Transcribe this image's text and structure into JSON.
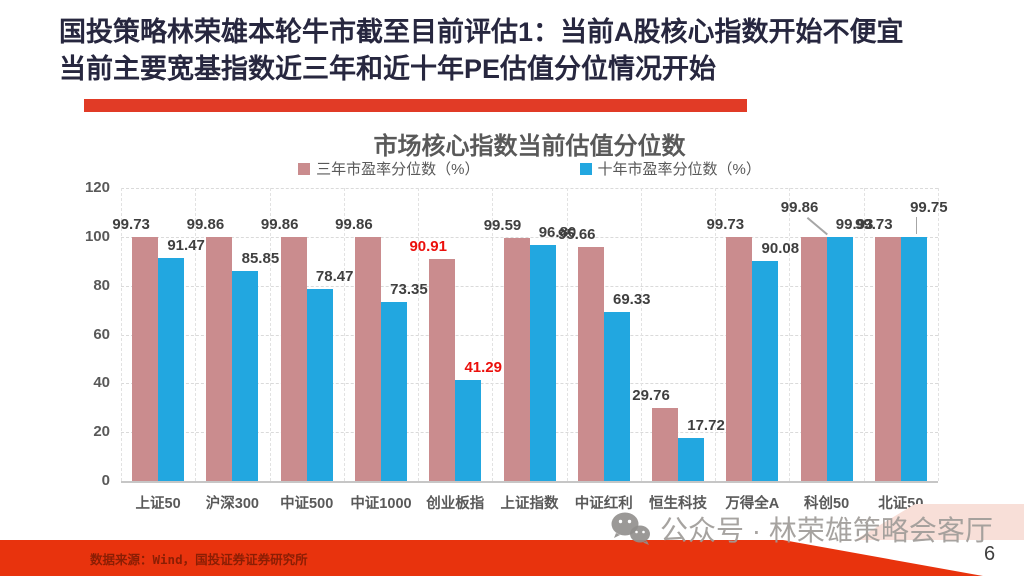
{
  "slide": {
    "title_line1": "国投策略林荣雄本轮牛市截至目前评估1：当前A股核心指数开始不便宜",
    "title_line2": "当前主要宽基指数近三年和近十年PE估值分位情况开始",
    "title_color": "#27273F",
    "underline_color": "#E13B26",
    "footer_source": "数据来源：Wind，国投证券证券研究所",
    "footer_band_color": "#E8330D",
    "watermark_text": "公众号 · 林荣雄策略会客厅",
    "watermark_icon": "wechat-icon",
    "page_number": "6"
  },
  "chart_data": {
    "type": "bar",
    "title": "市场核心指数当前估值分位数",
    "categories": [
      "上证50",
      "沪深300",
      "中证500",
      "中证1000",
      "创业板指",
      "上证指数",
      "中证红利",
      "恒生科技",
      "万得全A",
      "科创50",
      "北证50"
    ],
    "series": [
      {
        "name": "三年市盈率分位数（%）",
        "color": "#CA8C8E",
        "values": [
          99.73,
          99.86,
          99.86,
          99.86,
          90.91,
          99.59,
          95.66,
          29.76,
          99.73,
          99.86,
          99.73
        ]
      },
      {
        "name": "十年市盈率分位数（%）",
        "color": "#22A7E0",
        "values": [
          91.47,
          85.85,
          78.47,
          73.35,
          41.29,
          96.8,
          69.33,
          17.72,
          90.08,
          99.93,
          99.75
        ]
      }
    ],
    "ylim": [
      0,
      120
    ],
    "yticks": [
      0,
      20,
      40,
      60,
      80,
      100,
      120
    ],
    "grid": "dashed",
    "legend_position": "top",
    "value_label_decimals": 2,
    "label_color": "#3F3F3F",
    "axis_text_color": "#595959",
    "highlight_category_index": 4,
    "highlight_label_color": "#EB100C",
    "label_lift_points": [
      {
        "category_index": 9,
        "series_index": 0,
        "leader": "diagonal"
      },
      {
        "category_index": 10,
        "series_index": 1,
        "leader": "vertical"
      }
    ]
  }
}
